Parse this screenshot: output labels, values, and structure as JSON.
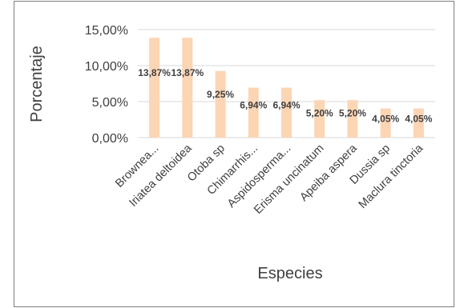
{
  "chart_data": {
    "type": "bar",
    "xlabel": "Especies",
    "ylabel": "Porcentaje",
    "categories": [
      "Brownea...",
      "Iriatea deltoidea",
      "Otoba sp",
      "Chimarrhis...",
      "Aspidosperma...",
      "Erisma uncinatum",
      "Apeiba aspera",
      "Dussia sp",
      "Maclura tinctoria"
    ],
    "values": [
      13.87,
      13.87,
      9.25,
      6.94,
      6.94,
      5.2,
      5.2,
      4.05,
      4.05
    ],
    "data_labels": [
      "13,87%",
      "13,87%",
      "9,25%",
      "6,94%",
      "6,94%",
      "5,20%",
      "5,20%",
      "4,05%",
      "4,05%"
    ],
    "ylim": [
      0,
      15
    ],
    "yticks": [
      0,
      5,
      10,
      15
    ],
    "ytick_labels": [
      "0,00%",
      "5,00%",
      "10,00%",
      "15,00%"
    ],
    "grid": true,
    "legend": "none",
    "colors": {
      "bar": "#fcd5b5",
      "grid": "#d9d9d9",
      "text": "#404040"
    }
  }
}
